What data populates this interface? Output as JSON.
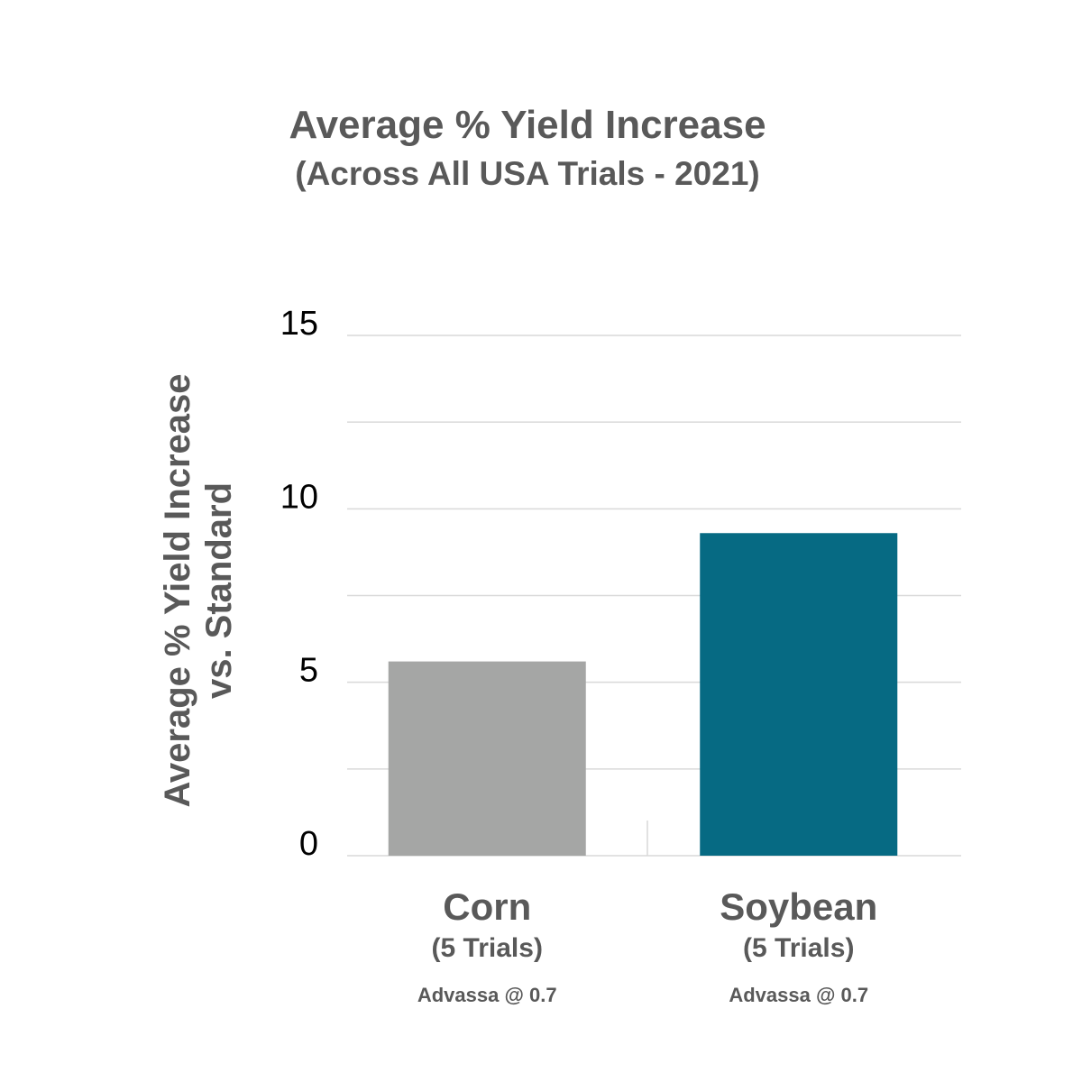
{
  "chart_data": {
    "type": "bar",
    "title": "Average % Yield Increase",
    "subtitle": "(Across All USA Trials - 2021)",
    "ylabel_lines": [
      "Average % Yield Increase",
      "vs. Standard"
    ],
    "xlabel": "",
    "ylim": [
      0,
      15
    ],
    "y_ticks": [
      0,
      5,
      10,
      15
    ],
    "y_tick_labels": [
      "0",
      "5",
      "10",
      "15"
    ],
    "grid": true,
    "categories": [
      "Corn",
      "Soybean"
    ],
    "category_sublabels": [
      "(5 Trials)",
      "(5 Trials)"
    ],
    "category_notes": [
      "Advassa @ 0.7",
      "Advassa @ 0.7"
    ],
    "values": [
      5.6,
      9.3
    ],
    "colors": [
      "#a5a6a5",
      "#066a83"
    ]
  },
  "colors": {
    "text": "#595959",
    "gridline": "#d9d9d9",
    "tick_text": "#000000"
  }
}
